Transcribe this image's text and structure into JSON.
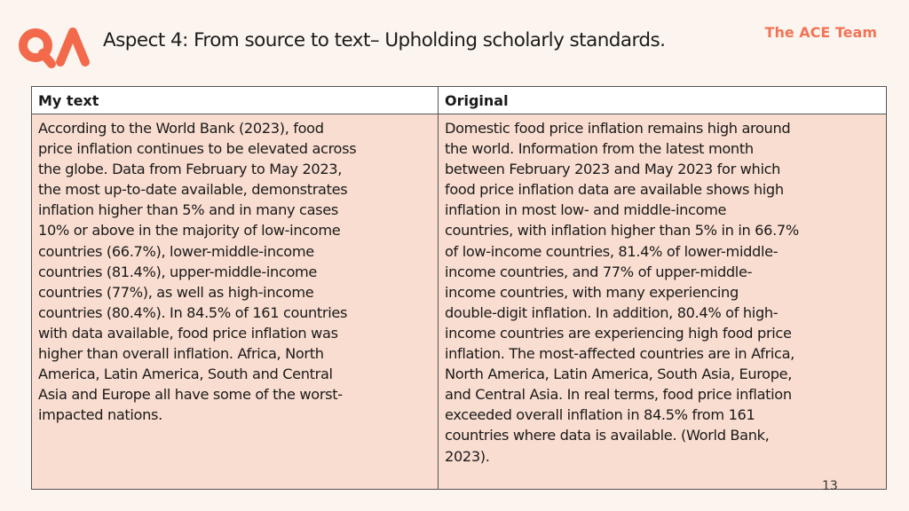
{
  "header": {
    "title": "Aspect 4: From source to text– Upholding scholarly standards.",
    "brand": "The ACE Team",
    "logo_colors": {
      "primary": "#f26a4b"
    }
  },
  "table": {
    "headers": {
      "left": "My text",
      "right": "Original"
    },
    "left_lines": [
      "According to the World Bank (2023), food",
      "price inflation continues to be elevated across",
      "the globe. Data from February to May 2023,",
      "the most up-to-date available, demonstrates",
      "inflation higher than 5% and in many cases",
      "10% or above in the majority of low-income",
      "countries (66.7%), lower-middle-income",
      "countries (81.4%), upper-middle-income",
      "countries (77%), as well as high-income",
      "countries (80.4%). In 84.5%  of 161 countries",
      "with data available, food price inflation was",
      "higher than overall inflation. Africa, North",
      "America, Latin America, South and Central",
      "Asia and Europe all have some of the worst-",
      "impacted nations."
    ],
    "right_lines": [
      "Domestic food price inflation remains high around",
      "the world. Information from the latest month",
      "between February 2023 and May 2023 for which",
      "food price inflation data are available shows high",
      "inflation in most low- and middle-income",
      "countries, with inflation higher than 5% in in 66.7%",
      "of low-income countries, 81.4% of lower-middle-",
      "income countries, and 77% of upper-middle-",
      "income countries, with many experiencing",
      "double-digit inflation. In addition, 80.4% of high-",
      "income countries are experiencing high food price",
      "inflation. The most-affected countries are in Africa,",
      "North America, Latin America, South Asia, Europe,",
      "and Central Asia. In real terms, food price inflation",
      "exceeded overall inflation in 84.5% from 161",
      "countries where data is available. (World Bank,",
      "2023)."
    ]
  },
  "footer": {
    "page_number": "13"
  }
}
